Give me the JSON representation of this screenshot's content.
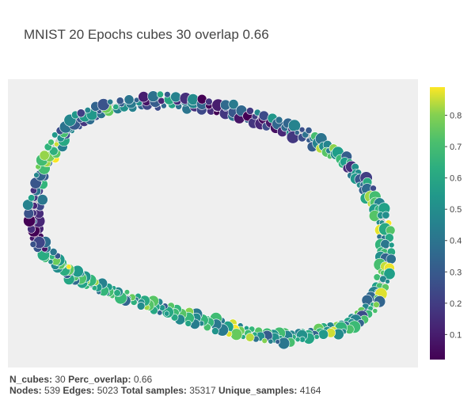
{
  "title": "MNIST 20 Epochs cubes 30 overlap 0.66",
  "stats": {
    "line1": [
      {
        "label": "N_cubes:",
        "value": "30"
      },
      {
        "label": "Perc_overlap:",
        "value": "0.66"
      }
    ],
    "line2": [
      {
        "label": "Nodes:",
        "value": "539"
      },
      {
        "label": "Edges:",
        "value": "5023"
      },
      {
        "label": "Total samples:",
        "value": "35317"
      },
      {
        "label": "Unique_samples:",
        "value": "4164"
      }
    ]
  },
  "colorbar": {
    "ticks": [
      "0.1",
      "0.2",
      "0.3",
      "0.4",
      "0.5",
      "0.6",
      "0.7",
      "0.8"
    ],
    "colorscale": "viridis",
    "range": [
      0.02,
      0.89
    ]
  },
  "colors": {
    "plot_background": "#efefef",
    "edge": "#b5b5b5",
    "text": "#444444"
  }
}
